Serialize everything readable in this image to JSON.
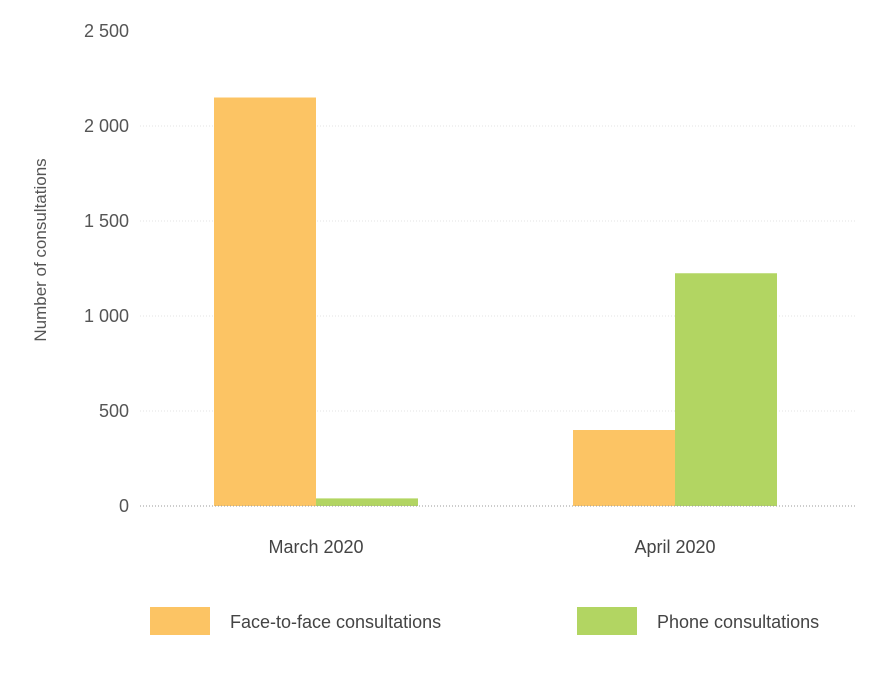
{
  "chart_data": {
    "type": "bar",
    "title": "",
    "xlabel": "",
    "ylabel": "Number of consultations",
    "ylim": [
      0,
      2500
    ],
    "yticks": [
      0,
      500,
      1000,
      1500,
      2000,
      2500
    ],
    "ytick_labels": [
      "0",
      "500",
      "1 000",
      "1 500",
      "2 000",
      "2 500"
    ],
    "categories": [
      "March 2020",
      "April 2020"
    ],
    "series": [
      {
        "name": "Face-to-face consultations",
        "values": [
          2150,
          400
        ],
        "color": "#FCC464"
      },
      {
        "name": "Phone consultations",
        "values": [
          40,
          1225
        ],
        "color": "#B2D562"
      }
    ],
    "grid": true,
    "legend_position": "bottom"
  }
}
